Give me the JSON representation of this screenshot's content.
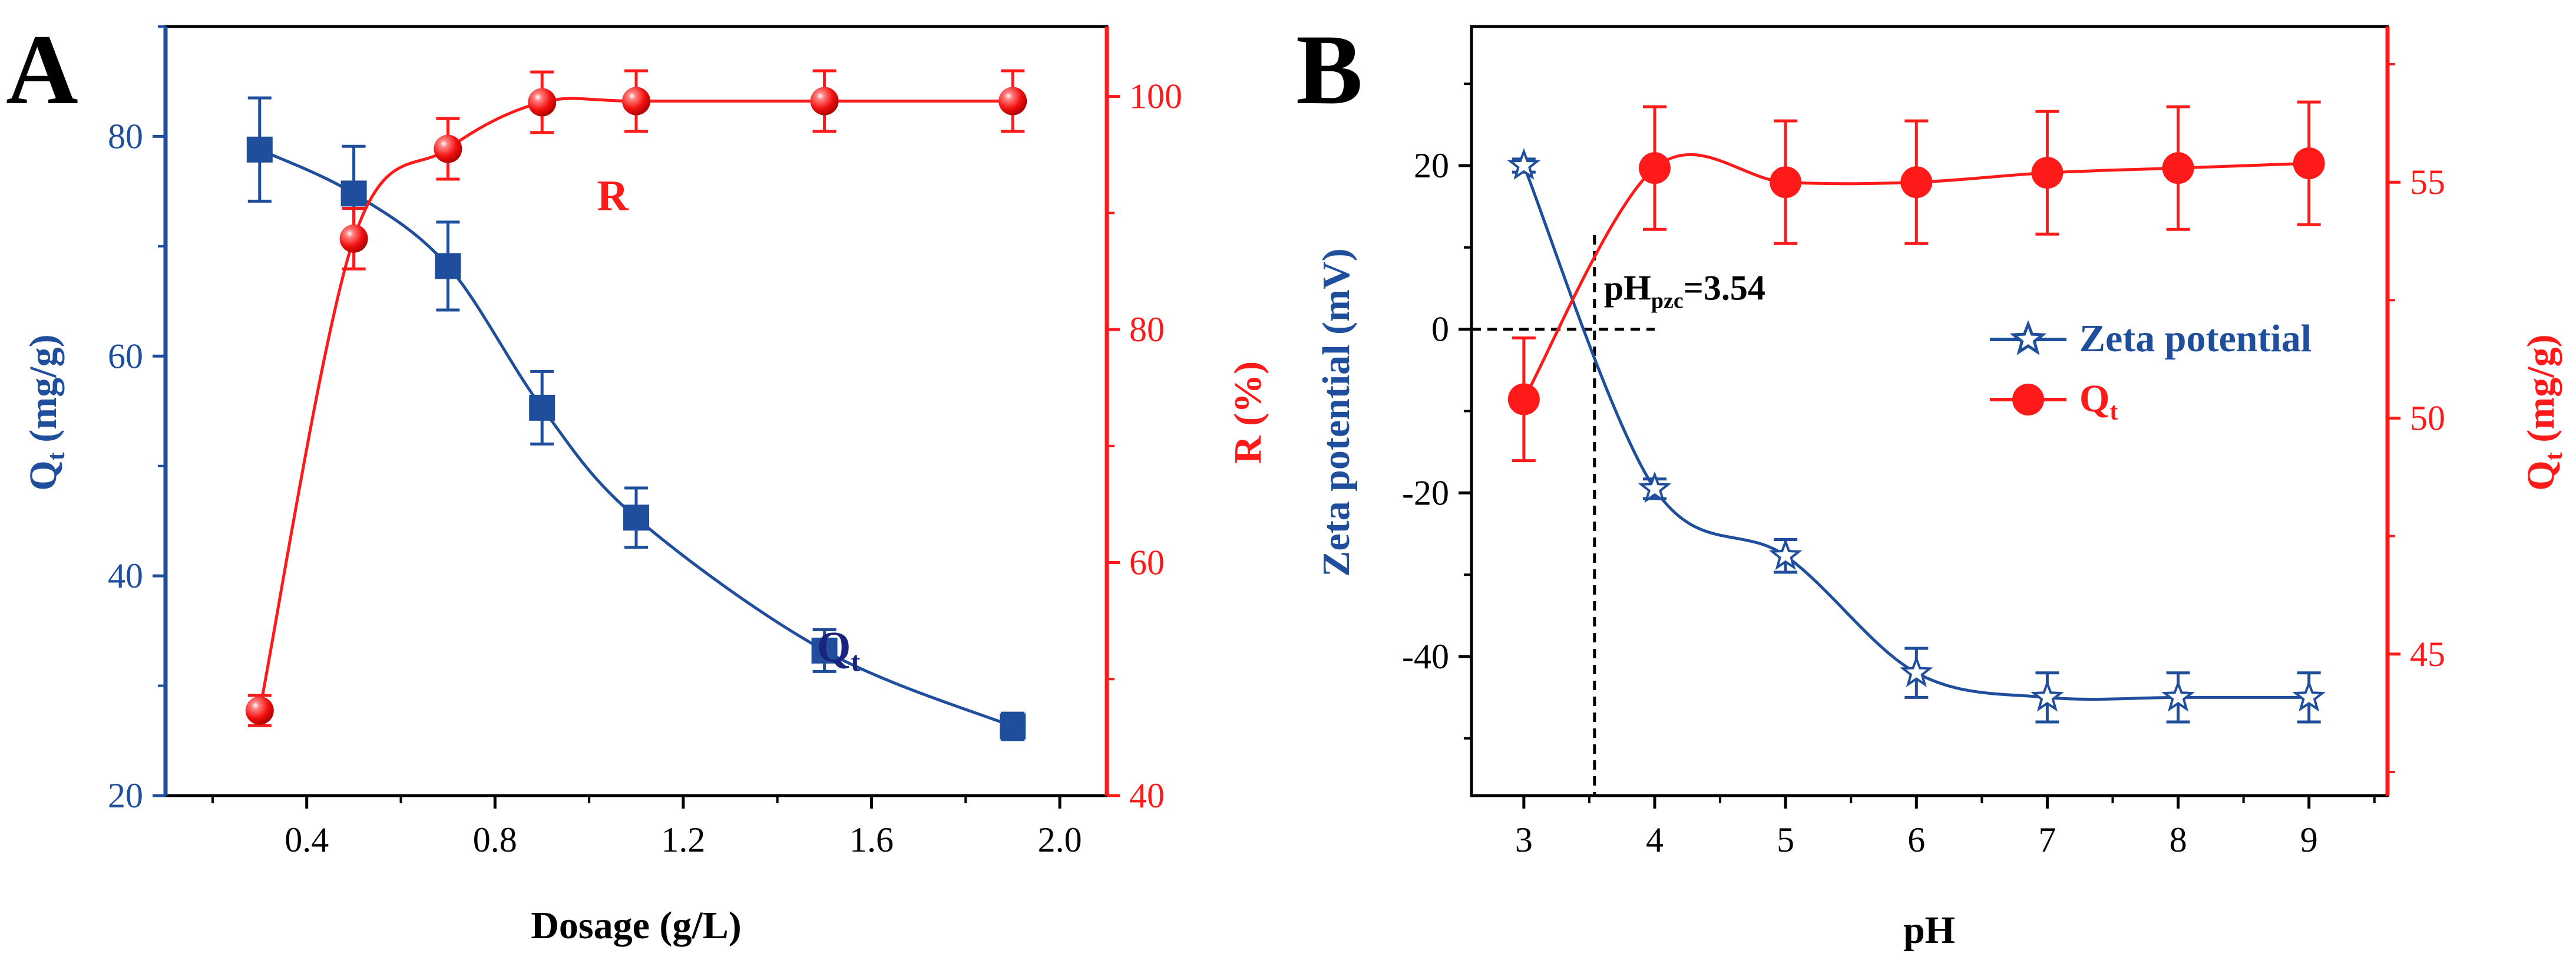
{
  "colors": {
    "blue": "#1f4e9c",
    "red": "#ff1a1a",
    "dark_blue": "#1a237e",
    "black": "#000000"
  },
  "chart_data": [
    {
      "panel": "A",
      "type": "line",
      "xlabel": "Dosage (g/L)",
      "xlim": [
        0.1,
        2.1
      ],
      "xticks": [
        0.4,
        0.8,
        1.2,
        1.6,
        2.0
      ],
      "xtick_labels": [
        "0.4",
        "0.8",
        "1.2",
        "1.6",
        "2.0"
      ],
      "left_axis": {
        "label_main": "Q",
        "label_sub": "t",
        "label_rest": " (mg/g)",
        "ylim": [
          20,
          90
        ],
        "ticks": [
          20,
          40,
          60,
          80
        ],
        "tick_labels": [
          "20",
          "40",
          "60",
          "80"
        ]
      },
      "right_axis": {
        "label": "R (%)",
        "ylim": [
          40,
          106
        ],
        "ticks": [
          40,
          60,
          80,
          100
        ],
        "tick_labels": [
          "40",
          "60",
          "80",
          "100"
        ]
      },
      "series": [
        {
          "name": "Qt",
          "axis": "left",
          "marker": "square",
          "color": "#1f4e9c",
          "x": [
            0.3,
            0.5,
            0.7,
            0.9,
            1.1,
            1.5,
            1.9
          ],
          "y": [
            78.8,
            74.8,
            68.2,
            55.3,
            45.3,
            33.2,
            26.3
          ],
          "err": [
            4.7,
            4.3,
            4.0,
            3.3,
            2.7,
            1.9,
            1.2
          ]
        },
        {
          "name": "R",
          "axis": "right",
          "marker": "sphere",
          "color": "#ff1a1a",
          "x": [
            0.3,
            0.5,
            0.7,
            0.9,
            1.1,
            1.5,
            1.9
          ],
          "y": [
            47.3,
            87.8,
            95.5,
            99.5,
            99.6,
            99.6,
            99.6
          ],
          "err": [
            1.3,
            2.6,
            2.6,
            2.6,
            2.6,
            2.6,
            2.6
          ]
        }
      ],
      "annotations": [
        {
          "text": "R",
          "color": "#ff1a1a",
          "x": 1.05,
          "y_left": 73.3
        },
        {
          "text_main": "Q",
          "text_sub": "t",
          "color": "#1a237e",
          "x": 1.53,
          "y_left": 32.2
        }
      ]
    },
    {
      "panel": "B",
      "type": "line",
      "xlabel": "pH",
      "xlim": [
        2.6,
        9.6
      ],
      "xticks": [
        3,
        4,
        5,
        6,
        7,
        8,
        9
      ],
      "xtick_labels": [
        "3",
        "4",
        "5",
        "6",
        "7",
        "8",
        "9"
      ],
      "left_axis": {
        "label": "Zeta potential (mV)",
        "ylim": [
          -57,
          37
        ],
        "ticks": [
          -40,
          -20,
          0,
          20
        ],
        "tick_labels": [
          "-40",
          "-20",
          "0",
          "20"
        ]
      },
      "right_axis": {
        "label_main": "Q",
        "label_sub": "t",
        "label_rest": " (mg/g)",
        "ylim": [
          42,
          58.3
        ],
        "ticks": [
          45,
          50,
          55
        ],
        "tick_labels": [
          "45",
          "50",
          "55"
        ]
      },
      "series": [
        {
          "name": "Zeta potential",
          "axis": "left",
          "marker": "star",
          "color": "#1f4e9c",
          "x": [
            3,
            4,
            5,
            6,
            7,
            8,
            9
          ],
          "y": [
            20.0,
            -19.5,
            -27.7,
            -42.0,
            -45.0,
            -45.0,
            -45.0
          ],
          "err": [
            0.8,
            1.2,
            2.0,
            3.0,
            3.0,
            3.0,
            3.0
          ]
        },
        {
          "name": "Qt",
          "axis": "right",
          "marker": "circle",
          "color": "#ff1a1a",
          "x": [
            3,
            4,
            5,
            6,
            7,
            8,
            9
          ],
          "y": [
            50.4,
            55.3,
            55.0,
            55.0,
            55.2,
            55.3,
            55.4
          ],
          "err": [
            1.3,
            1.3,
            1.3,
            1.3,
            1.3,
            1.3,
            1.3
          ]
        }
      ],
      "pzc": {
        "x": 3.54,
        "label_main": "pH",
        "label_sub": "pzc",
        "label_rest": "=3.54"
      },
      "legend": {
        "placement": "center-right",
        "entries": [
          {
            "label_main": "Zeta potential",
            "label_sub": "",
            "marker": "star",
            "color": "#1f4e9c"
          },
          {
            "label_main": "Q",
            "label_sub": "t",
            "marker": "circle",
            "color": "#ff1a1a"
          }
        ]
      }
    }
  ]
}
